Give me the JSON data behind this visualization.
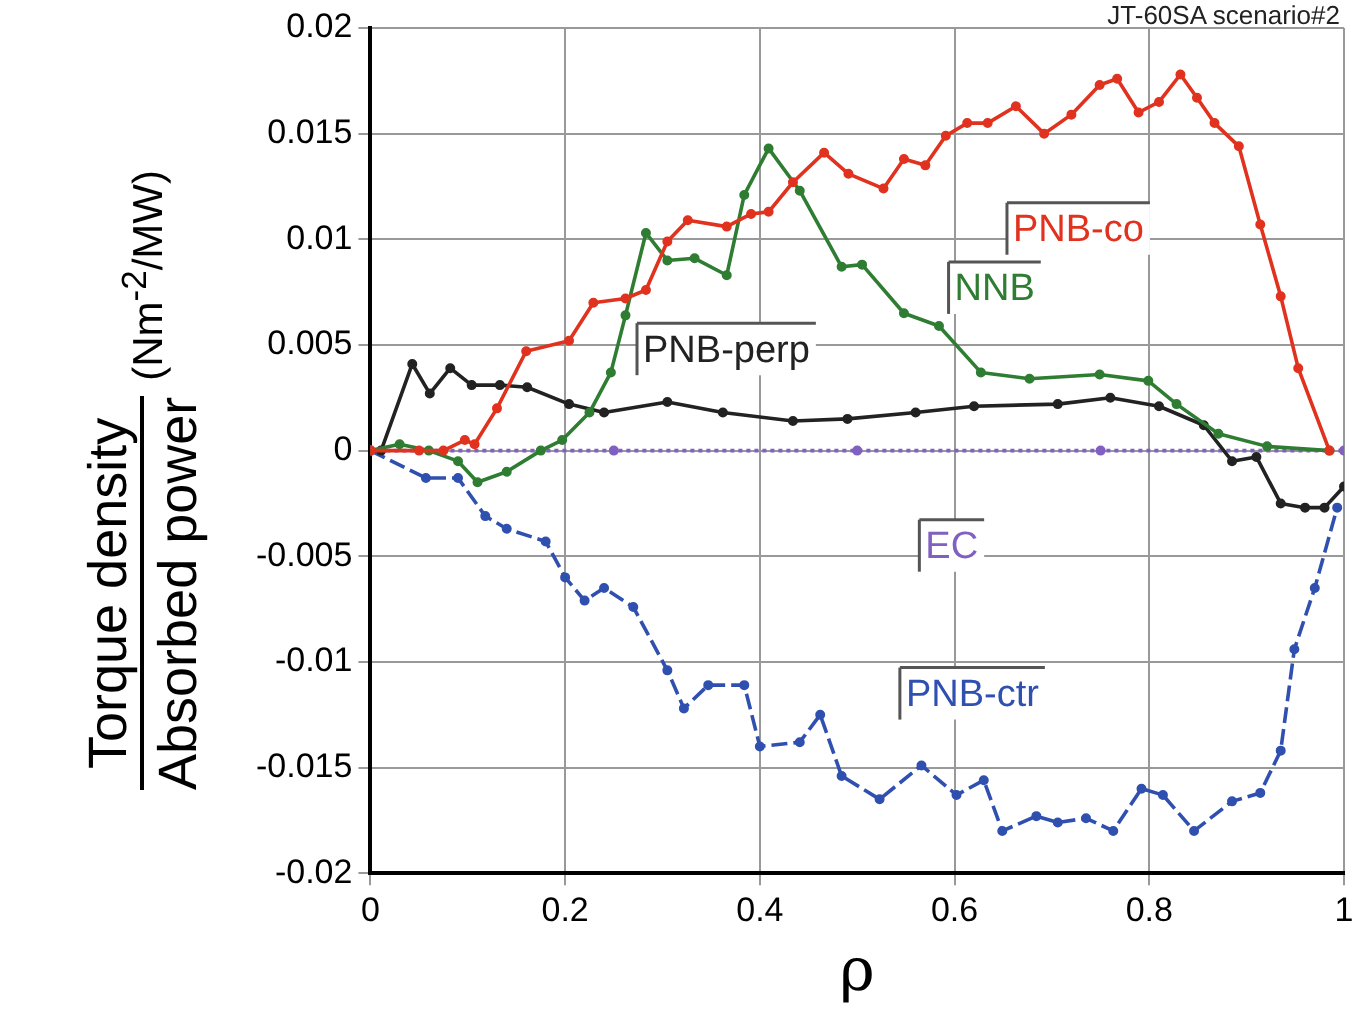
{
  "chart_data": {
    "type": "line",
    "xlabel": "ρ",
    "ylabel": "Torque density\nAbsorbed power (Nm$^{-2}$/MW)",
    "annotations": [
      "JT-60SA scenario#2"
    ],
    "xlim": [
      0,
      1
    ],
    "ylim": [
      -0.02,
      0.02
    ],
    "xticks": [
      0,
      0.2,
      0.4,
      0.6,
      0.8,
      1
    ],
    "yticks": [
      -0.02,
      -0.015,
      -0.01,
      -0.005,
      0,
      0.005,
      0.01,
      0.015,
      0.02
    ],
    "grid": true,
    "legend": false,
    "marker": "circle",
    "series": [
      {
        "name": "PNB-co",
        "color": "#e0321e",
        "x": [
          0,
          0.05,
          0.075,
          0.097,
          0.107,
          0.13,
          0.16,
          0.204,
          0.229,
          0.262,
          0.283,
          0.305,
          0.326,
          0.366,
          0.391,
          0.409,
          0.434,
          0.466,
          0.491,
          0.527,
          0.548,
          0.57,
          0.591,
          0.613,
          0.634,
          0.663,
          0.692,
          0.72,
          0.749,
          0.767,
          0.789,
          0.81,
          0.832,
          0.849,
          0.867,
          0.892,
          0.914,
          0.935,
          0.953,
          0.985
        ],
        "values": [
          0,
          0,
          0,
          0.0005,
          0.0003,
          0.002,
          0.0047,
          0.0052,
          0.007,
          0.0072,
          0.0076,
          0.0099,
          0.0109,
          0.0106,
          0.0112,
          0.0113,
          0.0127,
          0.0141,
          0.0131,
          0.0124,
          0.0138,
          0.0135,
          0.0149,
          0.0155,
          0.0155,
          0.0163,
          0.015,
          0.0159,
          0.0173,
          0.0176,
          0.016,
          0.0165,
          0.0178,
          0.0167,
          0.0155,
          0.0144,
          0.0107,
          0.0073,
          0.0039,
          0
        ]
      },
      {
        "name": "NNB",
        "color": "#2e7d32",
        "x": [
          0,
          0.03,
          0.06,
          0.09,
          0.11,
          0.14,
          0.175,
          0.197,
          0.225,
          0.247,
          0.262,
          0.283,
          0.305,
          0.333,
          0.366,
          0.384,
          0.409,
          0.441,
          0.484,
          0.505,
          0.548,
          0.584,
          0.627,
          0.677,
          0.749,
          0.799,
          0.828,
          0.871,
          0.921,
          0.985
        ],
        "values": [
          0,
          0.0003,
          0,
          -0.0005,
          -0.0015,
          -0.001,
          0,
          0.0005,
          0.0018,
          0.0037,
          0.0064,
          0.0103,
          0.009,
          0.0091,
          0.0083,
          0.0121,
          0.0143,
          0.0123,
          0.0087,
          0.0088,
          0.0065,
          0.0059,
          0.0037,
          0.0034,
          0.0036,
          0.0033,
          0.0022,
          0.0008,
          0.0002,
          0
        ]
      },
      {
        "name": "PNB-perp",
        "color": "#222222",
        "x": [
          0.011,
          0.043,
          0.061,
          0.082,
          0.104,
          0.133,
          0.161,
          0.204,
          0.24,
          0.305,
          0.362,
          0.434,
          0.49,
          0.56,
          0.62,
          0.706,
          0.76,
          0.81,
          0.856,
          0.885,
          0.91,
          0.935,
          0.96,
          0.98,
          1
        ],
        "values": [
          0,
          0.0041,
          0.0027,
          0.0039,
          0.0031,
          0.0031,
          0.003,
          0.0022,
          0.0018,
          0.0023,
          0.0018,
          0.0014,
          0.0015,
          0.0018,
          0.0021,
          0.0022,
          0.0025,
          0.0021,
          0.0012,
          -0.0005,
          -0.0003,
          -0.0025,
          -0.0027,
          -0.0027,
          -0.0017
        ]
      },
      {
        "name": "EC",
        "color": "#8060c0",
        "line_style": "dotted",
        "x": [
          0,
          0.25,
          0.5,
          0.75,
          1
        ],
        "values": [
          0,
          0,
          0,
          0,
          0
        ]
      },
      {
        "name": "PNB-ctr",
        "color": "#3050b0",
        "line_style": "dashed",
        "x": [
          0,
          0.057,
          0.09,
          0.118,
          0.14,
          0.18,
          0.2,
          0.22,
          0.24,
          0.27,
          0.305,
          0.322,
          0.347,
          0.384,
          0.4,
          0.441,
          0.462,
          0.484,
          0.523,
          0.566,
          0.602,
          0.63,
          0.649,
          0.684,
          0.706,
          0.735,
          0.763,
          0.792,
          0.814,
          0.846,
          0.885,
          0.914,
          0.935,
          0.949,
          0.97,
          0.993
        ],
        "values": [
          0,
          -0.0013,
          -0.0013,
          -0.0031,
          -0.0037,
          -0.0043,
          -0.006,
          -0.0071,
          -0.0065,
          -0.0074,
          -0.0104,
          -0.0122,
          -0.0111,
          -0.0111,
          -0.014,
          -0.0138,
          -0.0125,
          -0.0154,
          -0.0165,
          -0.0149,
          -0.0163,
          -0.0156,
          -0.018,
          -0.0173,
          -0.0176,
          -0.0174,
          -0.018,
          -0.016,
          -0.0163,
          -0.018,
          -0.0166,
          -0.0162,
          -0.0142,
          -0.0094,
          -0.0065,
          -0.0027
        ]
      }
    ]
  }
}
